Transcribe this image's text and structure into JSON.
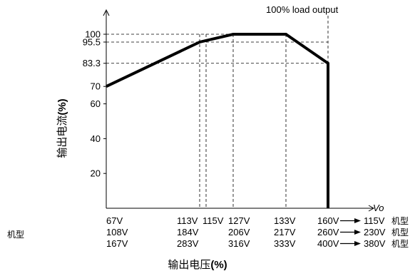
{
  "chart_data": {
    "type": "line",
    "title": "",
    "annotation": "100% load output",
    "ylabel_cn": "输出电流",
    "ylabel_unit": "(%)",
    "xlabel_cn": "输出电压",
    "xlabel_unit": "(%)",
    "x_axis_symbol": "Vo",
    "yticks": [
      "100",
      "95.5",
      "83.3",
      "70",
      "60",
      "40",
      "20"
    ],
    "ylim": [
      0,
      125
    ],
    "x_positions": [
      "67V",
      "113V",
      "115V",
      "127V",
      "133V",
      "160V"
    ],
    "voltage_rows": [
      [
        "67V",
        "113V",
        "115V",
        "127V",
        "133V",
        "160V",
        "115V"
      ],
      [
        "108V",
        "184V",
        "",
        "206V",
        "217V",
        "260V",
        "230V"
      ],
      [
        "167V",
        "283V",
        "",
        "316V",
        "333V",
        "400V",
        "380V"
      ]
    ],
    "model_label": "机型",
    "series": [
      {
        "points": [
          {
            "x": "67V",
            "y": 70
          },
          {
            "x": "113V",
            "y": 95.5
          },
          {
            "x": "127V",
            "y": 100
          },
          {
            "x": "133V",
            "y": 100
          },
          {
            "x": "160V",
            "y": 83.3
          },
          {
            "x": "160V",
            "y": 0
          }
        ]
      }
    ],
    "guide_lines": [
      {
        "axis": "y",
        "value": 100
      },
      {
        "axis": "y",
        "value": 95.5
      },
      {
        "axis": "y",
        "value": 83.3
      },
      {
        "axis": "x",
        "value": "113V"
      },
      {
        "axis": "x",
        "value": "115V"
      },
      {
        "axis": "x",
        "value": "127V"
      },
      {
        "axis": "x",
        "value": "133V"
      },
      {
        "axis": "x",
        "value": "160V"
      }
    ]
  }
}
